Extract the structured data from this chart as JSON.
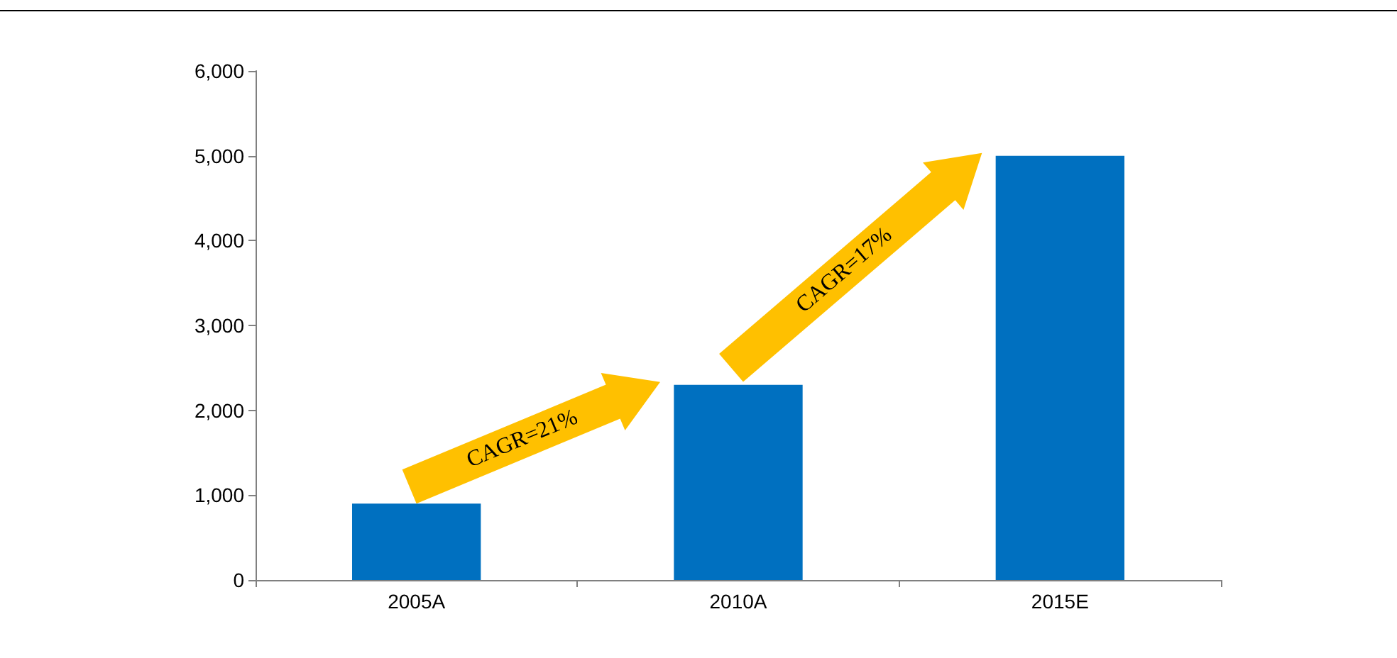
{
  "chart_data": {
    "type": "bar",
    "categories": [
      "2005A",
      "2010A",
      "2015E"
    ],
    "values": [
      900,
      2300,
      5000
    ],
    "color": "#0070c0",
    "ylim": [
      0,
      6000
    ],
    "yticks": [
      {
        "value": 0,
        "label": "0"
      },
      {
        "value": 1000,
        "label": "1,000"
      },
      {
        "value": 2000,
        "label": "2,000"
      },
      {
        "value": 3000,
        "label": "3,000"
      },
      {
        "value": 4000,
        "label": "4,000"
      },
      {
        "value": 5000,
        "label": "5,000"
      },
      {
        "value": 6000,
        "label": "6,000"
      }
    ],
    "annotations": [
      "CAGR=21%",
      "CAGR=17%"
    ]
  }
}
